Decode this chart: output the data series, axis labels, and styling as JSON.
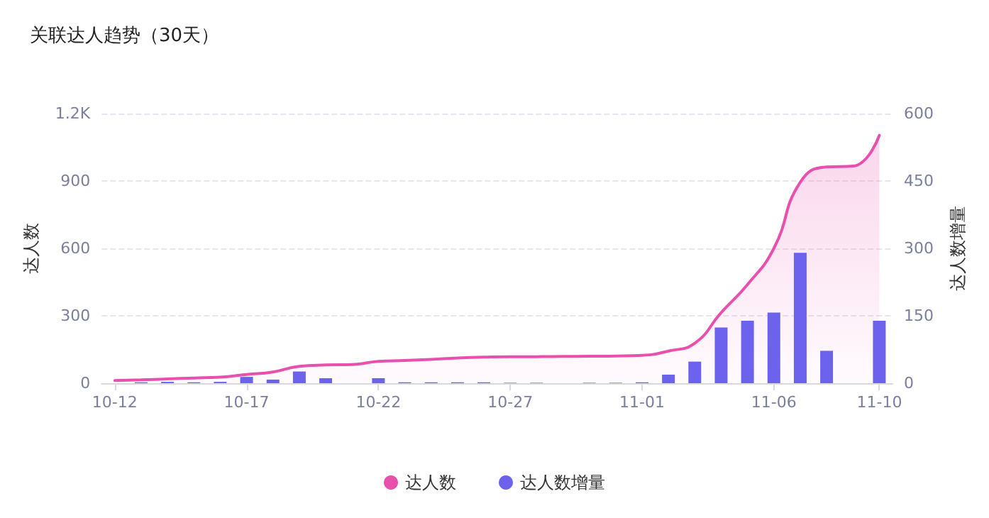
{
  "chart_data": {
    "type": "bar",
    "title": "关联达人趋势（30天）",
    "ylabel": "达人数",
    "y2label": "达人数增量",
    "categories": [
      "10-12",
      null,
      null,
      null,
      null,
      "10-17",
      null,
      null,
      null,
      null,
      "10-22",
      null,
      null,
      null,
      null,
      "10-27",
      null,
      null,
      null,
      null,
      "11-01",
      null,
      null,
      null,
      null,
      "11-06",
      null,
      null,
      null,
      "11-10"
    ],
    "series": [
      {
        "name": "达人数",
        "type": "area",
        "color": "#e94fad",
        "values": [
          12,
          15,
          19,
          23,
          27,
          39,
          50,
          75,
          81,
          83,
          97,
          101,
          106,
          112,
          116,
          118,
          118,
          119,
          120,
          121,
          124,
          143,
          178,
          314,
          439,
          600,
          894,
          962,
          966,
          1103
        ]
      },
      {
        "name": "达人数增量",
        "axis": "y2",
        "color": "#6c62ee",
        "values": [
          0,
          2,
          3,
          2,
          3,
          14,
          8,
          26,
          11,
          0,
          11,
          2,
          2,
          2,
          2,
          1,
          1,
          0,
          1,
          1,
          2,
          19,
          48,
          124,
          139,
          157,
          290,
          72,
          0,
          139
        ]
      }
    ],
    "ylim": [
      0,
      1200
    ],
    "yticks": [
      0,
      300,
      600,
      900,
      {
        "value": 1200,
        "label": "1.2K"
      }
    ],
    "y2lim": [
      0,
      600
    ],
    "y2ticks": [
      0,
      150,
      300,
      450,
      600
    ],
    "grid": "y",
    "legend": "bottom",
    "marker": "none",
    "line_style": "solid"
  }
}
